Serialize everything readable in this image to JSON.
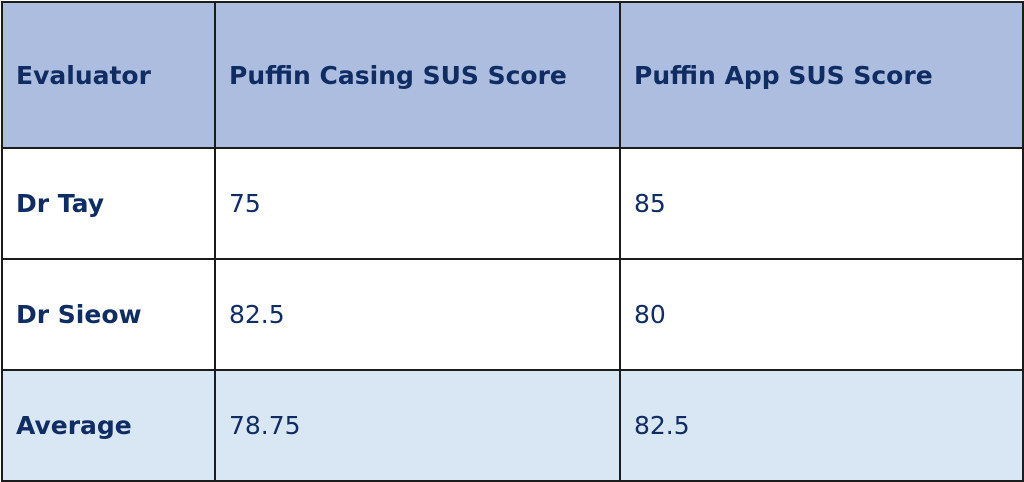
{
  "table": {
    "header": [
      "Evaluator",
      "Puffin Casing SUS Score",
      "Puffin App SUS Score"
    ],
    "rows": [
      [
        "Dr Tay",
        75,
        85
      ],
      [
        "Dr Sieow",
        82.5,
        80
      ],
      [
        "Average",
        78.75,
        82.5
      ]
    ]
  }
}
